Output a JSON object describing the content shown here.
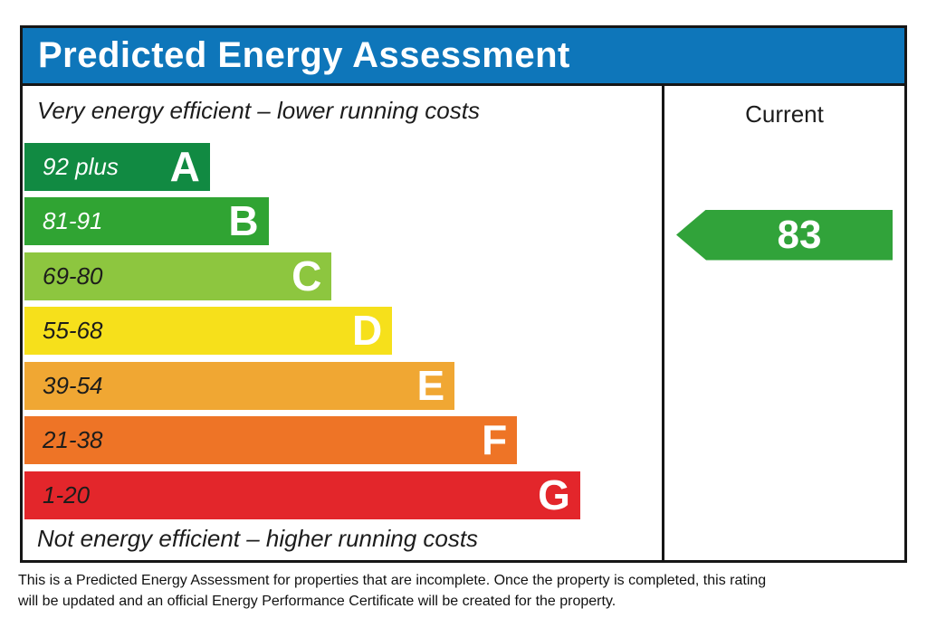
{
  "header": {
    "title": "Predicted Energy Assessment",
    "background": "#0e76ba"
  },
  "chart_data": {
    "type": "bar",
    "title": "Predicted Energy Assessment",
    "top_caption": "Very energy efficient – lower running costs",
    "bottom_caption": "Not energy efficient – higher running costs",
    "right_column_header": "Current",
    "legend_position": "none",
    "grid": false,
    "bands": [
      {
        "letter": "A",
        "range_label": "92 plus",
        "color": "#118a42",
        "width_pct": 29.1,
        "range_text_color": "#ffffff"
      },
      {
        "letter": "B",
        "range_label": "81-91",
        "color": "#30a433",
        "width_pct": 38.3,
        "range_text_color": "#ffffff"
      },
      {
        "letter": "C",
        "range_label": "69-80",
        "color": "#8dc63f",
        "width_pct": 48.2,
        "range_text_color": "#1d1d1b"
      },
      {
        "letter": "D",
        "range_label": "55-68",
        "color": "#f6e01b",
        "width_pct": 57.7,
        "range_text_color": "#1d1d1b"
      },
      {
        "letter": "E",
        "range_label": "39-54",
        "color": "#f0a733",
        "width_pct": 67.5,
        "range_text_color": "#1d1d1b"
      },
      {
        "letter": "F",
        "range_label": "21-38",
        "color": "#ee7426",
        "width_pct": 77.3,
        "range_text_color": "#1d1d1b"
      },
      {
        "letter": "G",
        "range_label": "1-20",
        "color": "#e3262b",
        "width_pct": 87.2,
        "range_text_color": "#1d1d1b"
      }
    ],
    "current": {
      "value": "83",
      "band": "B",
      "arrow_color": "#31a33a"
    }
  },
  "footer": {
    "note": "This is a Predicted Energy Assessment for properties that are incomplete. Once the property is completed, this rating will be updated and an official Energy Performance Certificate will be created for the property."
  }
}
